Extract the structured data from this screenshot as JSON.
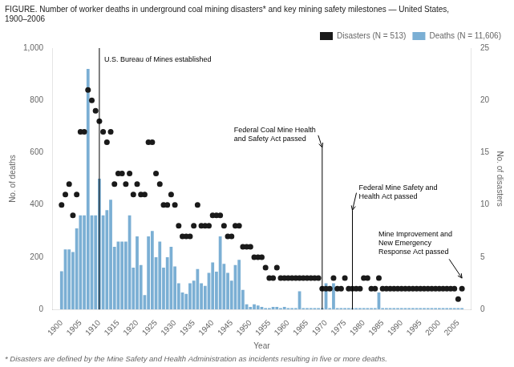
{
  "chart_data": {
    "type": "bar",
    "title": "FIGURE. Number of worker deaths in underground coal mining disasters* and key mining safety milestones — United States,",
    "subtitle": "1900–2006",
    "footnote": "* Disasters are defined by the Mine Safety and Health Administration as incidents resulting in five or more deaths.",
    "x_label": "Year",
    "y_label": "No. of deaths",
    "y2_label": "No. of disasters",
    "x": [
      1900,
      1901,
      1902,
      1903,
      1904,
      1905,
      1906,
      1907,
      1908,
      1909,
      1910,
      1911,
      1912,
      1913,
      1914,
      1915,
      1916,
      1917,
      1918,
      1919,
      1920,
      1921,
      1922,
      1923,
      1924,
      1925,
      1926,
      1927,
      1928,
      1929,
      1930,
      1931,
      1932,
      1933,
      1934,
      1935,
      1936,
      1937,
      1938,
      1939,
      1940,
      1941,
      1942,
      1943,
      1944,
      1945,
      1946,
      1947,
      1948,
      1949,
      1950,
      1951,
      1952,
      1953,
      1954,
      1955,
      1956,
      1957,
      1958,
      1959,
      1960,
      1961,
      1962,
      1963,
      1964,
      1965,
      1966,
      1967,
      1968,
      1969,
      1970,
      1971,
      1972,
      1973,
      1974,
      1975,
      1976,
      1977,
      1978,
      1979,
      1980,
      1981,
      1982,
      1983,
      1984,
      1985,
      1986,
      1987,
      1988,
      1989,
      1990,
      1991,
      1992,
      1993,
      1994,
      1995,
      1996,
      1997,
      1998,
      1999,
      2000,
      2001,
      2002,
      2003,
      2004,
      2005,
      2006
    ],
    "series": [
      {
        "name": "Deaths (N = 11,606)",
        "type": "bar",
        "color": "#7bafd4",
        "values": [
          146,
          230,
          230,
          220,
          310,
          360,
          360,
          920,
          360,
          360,
          500,
          360,
          380,
          420,
          240,
          260,
          260,
          260,
          360,
          160,
          280,
          170,
          55,
          280,
          300,
          200,
          260,
          160,
          200,
          240,
          165,
          100,
          65,
          60,
          100,
          110,
          155,
          100,
          90,
          140,
          180,
          145,
          280,
          175,
          140,
          110,
          170,
          190,
          75,
          20,
          10,
          20,
          15,
          10,
          5,
          5,
          10,
          10,
          5,
          10,
          5,
          5,
          5,
          70,
          5,
          5,
          5,
          5,
          5,
          5,
          100,
          5,
          100,
          5,
          5,
          5,
          5,
          5,
          5,
          5,
          5,
          5,
          5,
          5,
          65,
          5,
          5,
          5,
          5,
          5,
          5,
          5,
          5,
          5,
          5,
          5,
          5,
          5,
          5,
          5,
          5,
          5,
          5,
          5,
          5,
          5,
          5
        ]
      },
      {
        "name": "Disasters (N = 513)",
        "type": "scatter",
        "axis": "y2",
        "color": "#1a1a1a",
        "marker": "circle",
        "values": [
          10,
          11,
          12,
          9,
          11,
          17,
          17,
          21,
          20,
          19,
          18,
          17,
          16,
          17,
          12,
          13,
          13,
          12,
          13,
          11,
          12,
          11,
          11,
          16,
          16,
          13,
          12,
          10,
          10,
          11,
          10,
          8,
          7,
          7,
          7,
          8,
          10,
          8,
          8,
          8,
          9,
          9,
          9,
          8,
          7,
          7,
          8,
          8,
          6,
          6,
          6,
          5,
          5,
          5,
          4,
          3,
          3,
          4,
          3,
          3,
          3,
          3,
          3,
          3,
          3,
          3,
          3,
          3,
          3,
          2,
          2,
          2,
          3,
          2,
          2,
          3,
          2,
          2,
          2,
          2,
          3,
          3,
          2,
          2,
          3,
          2,
          2,
          2,
          2,
          2,
          2,
          2,
          2,
          2,
          2,
          2,
          2,
          2,
          2,
          2,
          2,
          2,
          2,
          2,
          2,
          1,
          2
        ]
      }
    ],
    "xlim": [
      1897.5,
      2008.5
    ],
    "xticks": [
      1900,
      1905,
      1910,
      1915,
      1920,
      1925,
      1930,
      1935,
      1940,
      1945,
      1950,
      1955,
      1960,
      1965,
      1970,
      1975,
      1980,
      1985,
      1990,
      1995,
      2000,
      2005
    ],
    "ylim": [
      0,
      1000
    ],
    "yticks": [
      0,
      200,
      400,
      600,
      800,
      {
        "value": 1000,
        "label": "1,000"
      }
    ],
    "y2lim": [
      0,
      25
    ],
    "y2ticks": [
      0,
      5,
      10,
      15,
      20,
      25
    ],
    "annotations": [
      {
        "text": "U.S. Bureau of Mines established",
        "x": 1910
      },
      {
        "text": "Federal Coal Mine Health\nand Safety Act passed",
        "x": 1969
      },
      {
        "text": "Federal Mine Safety and\nHealth Act passed",
        "x": 1977
      },
      {
        "text": "Mine Improvement and\nNew Emergency\nResponse Act passed",
        "x": 2006
      }
    ],
    "legend": "upper right",
    "grid": false
  }
}
